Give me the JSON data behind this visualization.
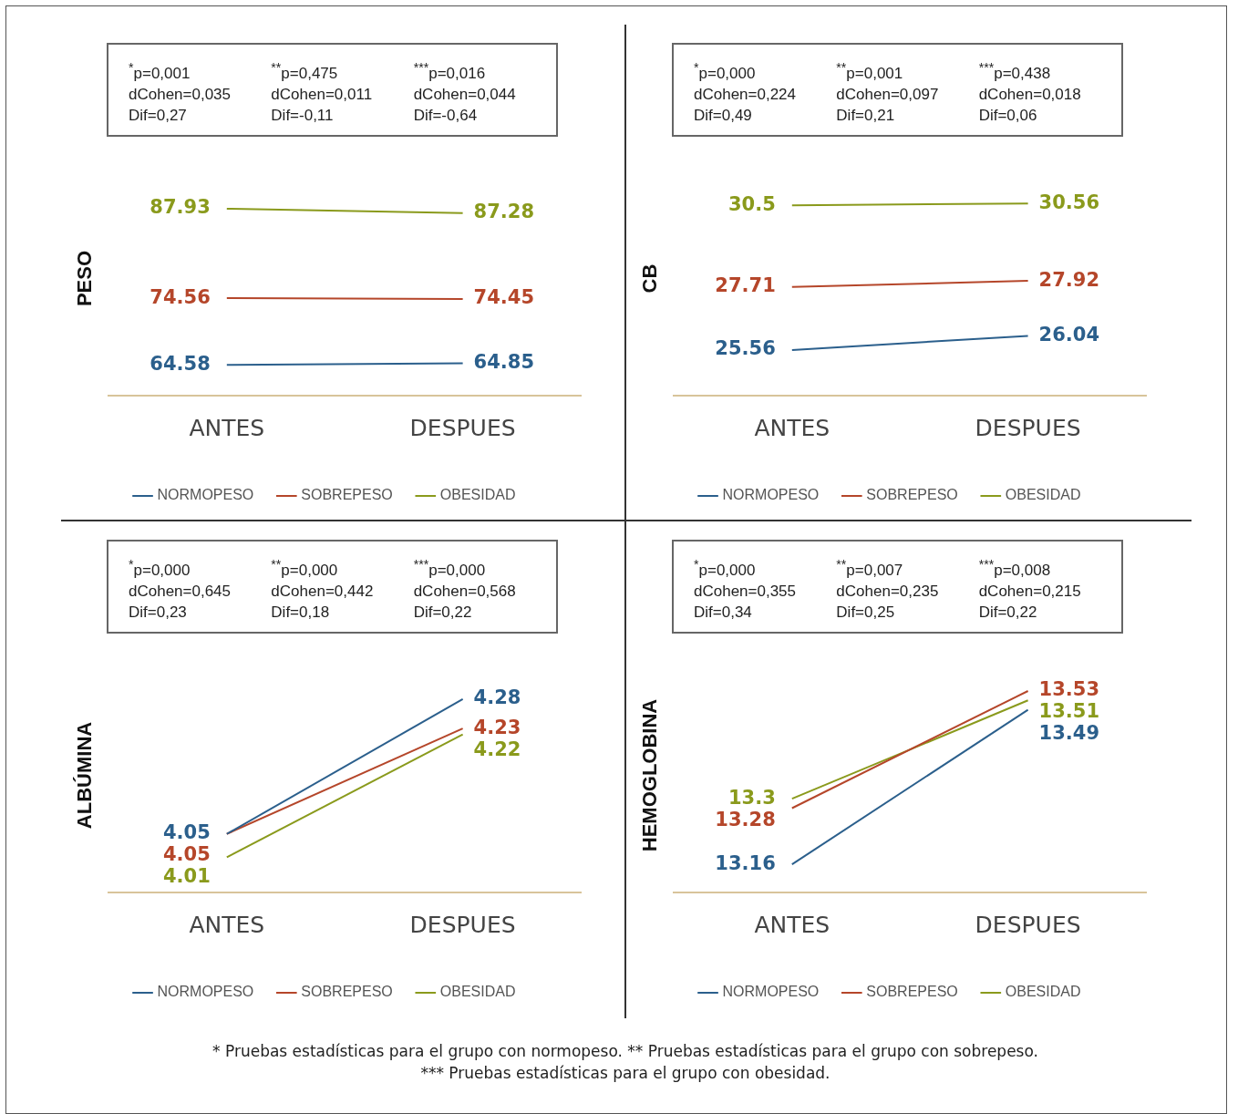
{
  "chart_data": [
    {
      "type": "line",
      "ylabel": "PESO",
      "categories": [
        "ANTES",
        "DESPUES"
      ],
      "data_labels": true,
      "legend": "bottom",
      "tick_labels": "x",
      "grid": false,
      "line_style": "solid",
      "marker": "none",
      "series": [
        {
          "name": "NORMOPESO",
          "color": "#2b5f8c",
          "values": [
            64.58,
            64.85
          ]
        },
        {
          "name": "SOBREPESO",
          "color": "#b5462a",
          "values": [
            74.56,
            74.45
          ]
        },
        {
          "name": "OBESIDAD",
          "color": "#8a9a1c",
          "values": [
            87.93,
            87.28
          ]
        }
      ],
      "annotations": [
        "$^{*}$p=0,001\ndCohen=0,035\nDif=0,27",
        "$^{**}$p=0,475\ndCohen=0,011\nDif=-0,11",
        "$^{***}$p=0,016\ndCohen=0,044\nDif=-0,64"
      ]
    },
    {
      "type": "line",
      "ylabel": "CB",
      "categories": [
        "ANTES",
        "DESPUES"
      ],
      "data_labels": true,
      "legend": "bottom",
      "tick_labels": "x",
      "grid": false,
      "line_style": "solid",
      "marker": "none",
      "series": [
        {
          "name": "NORMOPESO",
          "color": "#2b5f8c",
          "values": [
            25.56,
            26.04
          ]
        },
        {
          "name": "SOBREPESO",
          "color": "#b5462a",
          "values": [
            27.71,
            27.92
          ]
        },
        {
          "name": "OBESIDAD",
          "color": "#8a9a1c",
          "values": [
            30.5,
            30.56
          ]
        }
      ],
      "annotations": [
        "$^{*}$p=0,000\ndCohen=0,224\nDif=0,49",
        "$^{**}$p=0,001\ndCohen=0,097\nDif=0,21",
        "$^{***}$p=0,438\ndCohen=0,018\nDif=0,06"
      ]
    },
    {
      "type": "line",
      "ylabel": "ALBÚMINA",
      "categories": [
        "ANTES",
        "DESPUES"
      ],
      "data_labels": true,
      "legend": "bottom",
      "tick_labels": "x",
      "grid": false,
      "line_style": "solid",
      "marker": "none",
      "series": [
        {
          "name": "NORMOPESO",
          "color": "#2b5f8c",
          "values": [
            4.05,
            4.28
          ]
        },
        {
          "name": "SOBREPESO",
          "color": "#b5462a",
          "values": [
            4.05,
            4.23
          ]
        },
        {
          "name": "OBESIDAD",
          "color": "#8a9a1c",
          "values": [
            4.01,
            4.22
          ]
        }
      ],
      "annotations": [
        "$^{*}$p=0,000\ndCohen=0,645\nDif=0,23",
        "$^{**}$p=0,000\ndCohen=0,442\nDif=0,18",
        "$^{***}$p=0,000\ndCohen=0,568\nDif=0,22"
      ]
    },
    {
      "type": "line",
      "ylabel": "HEMOGLOBINA",
      "categories": [
        "ANTES",
        "DESPUES"
      ],
      "data_labels": true,
      "legend": "bottom",
      "tick_labels": "x",
      "grid": false,
      "line_style": "solid",
      "marker": "none",
      "series": [
        {
          "name": "NORMOPESO",
          "color": "#2b5f8c",
          "values": [
            13.16,
            13.49
          ]
        },
        {
          "name": "SOBREPESO",
          "color": "#b5462a",
          "values": [
            13.28,
            13.53
          ]
        },
        {
          "name": "OBESIDAD",
          "color": "#8a9a1c",
          "values": [
            13.3,
            13.51
          ]
        }
      ],
      "annotations": [
        "$^{*}$p=0,000\ndCohen=0,355\nDif=0,34",
        "$^{**}$p=0,007\ndCohen=0,235\nDif=0,25",
        "$^{***}$p=0,008\ndCohen=0,215\nDif=0,22",
        "* Pruebas estadísticas para el grupo con normopeso. ** Pruebas estadísticas para el grupo con sobrepeso.",
        "*** Pruebas estadísticas para el grupo con obesidad."
      ]
    }
  ]
}
